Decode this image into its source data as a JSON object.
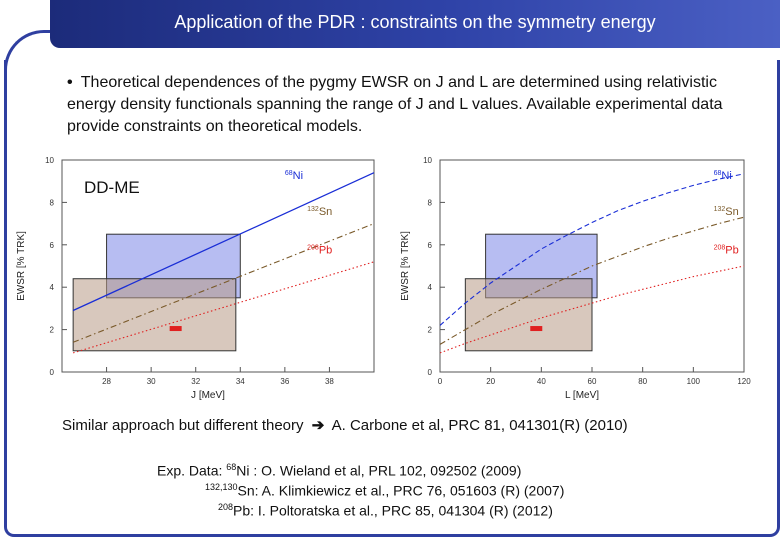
{
  "header": {
    "title": "Application of the PDR : constraints on the symmetry energy"
  },
  "bullet": {
    "marker": "•",
    "text": "Theoretical dependences of the pygmy EWSR on J and L are determined using relativistic energy density functionals spanning the range of J and L values. Available experimental data provide constraints on theoretical models."
  },
  "colors": {
    "header": "#2f43a8",
    "ni": "#1a2ed6",
    "sn": "#7a5a2a",
    "pb": "#e02020",
    "box_blue": "#7c86e8",
    "box_brown": "#b89a86"
  },
  "chart_data": [
    {
      "type": "line",
      "model_label": "DD-ME",
      "xlabel": "J [MeV]",
      "ylabel": "EWSR [% TRK]",
      "xlim": [
        26,
        40
      ],
      "ylim": [
        0,
        10
      ],
      "xticks": [
        28,
        30,
        32,
        34,
        36,
        38
      ],
      "yticks": [
        0,
        2,
        4,
        6,
        8,
        10
      ],
      "series": [
        {
          "name": "68Ni",
          "style": "solid",
          "color": "#1a2ed6",
          "x": [
            26.5,
            40
          ],
          "y": [
            2.9,
            9.4
          ]
        },
        {
          "name": "132Sn",
          "style": "dashdot",
          "color": "#7a5a2a",
          "x": [
            26.5,
            40
          ],
          "y": [
            1.4,
            7.0
          ]
        },
        {
          "name": "208Pb",
          "style": "dotted",
          "color": "#e02020",
          "x": [
            26.5,
            40
          ],
          "y": [
            0.9,
            5.2
          ]
        }
      ],
      "labels": [
        {
          "mass": "68",
          "element": "Ni",
          "x": 36.0,
          "y": 9.1
        },
        {
          "mass": "132",
          "element": "Sn",
          "x": 37.0,
          "y": 7.4
        },
        {
          "mass": "208",
          "element": "Pb",
          "x": 37.0,
          "y": 5.6
        }
      ],
      "boxes": [
        {
          "name": "Ni constraint",
          "x0": 28,
          "x1": 34,
          "y0": 3.5,
          "y1": 6.5,
          "fill": "#7c86e8"
        },
        {
          "name": "Sn constraint",
          "x0": 26.5,
          "x1": 33.8,
          "y0": 1.0,
          "y1": 4.4,
          "fill": "#b89a86"
        }
      ],
      "points": [
        {
          "name": "Pb data",
          "x": 31.1,
          "y": 2.05,
          "color": "#e02020"
        }
      ]
    },
    {
      "type": "line",
      "xlabel": "L [MeV]",
      "ylabel": "EWSR [% TRK]",
      "xlim": [
        0,
        120
      ],
      "ylim": [
        0,
        10
      ],
      "xticks": [
        0,
        20,
        40,
        60,
        80,
        100,
        120
      ],
      "yticks": [
        0,
        2,
        4,
        6,
        8,
        10
      ],
      "series": [
        {
          "name": "68Ni",
          "style": "dashed",
          "color": "#1a2ed6",
          "x": [
            0,
            10,
            20,
            30,
            40,
            50,
            60,
            70,
            80,
            90,
            100,
            110,
            120
          ],
          "y": [
            2.2,
            3.25,
            4.2,
            5.0,
            5.8,
            6.45,
            7.05,
            7.6,
            8.05,
            8.45,
            8.8,
            9.1,
            9.35
          ]
        },
        {
          "name": "132Sn",
          "style": "dashdot",
          "color": "#7a5a2a",
          "x": [
            0,
            10,
            20,
            30,
            40,
            50,
            60,
            70,
            80,
            90,
            100,
            110,
            120
          ],
          "y": [
            1.3,
            2.0,
            2.7,
            3.3,
            3.9,
            4.45,
            5.0,
            5.45,
            5.9,
            6.3,
            6.65,
            7.0,
            7.3
          ]
        },
        {
          "name": "208Pb",
          "style": "dotted",
          "color": "#e02020",
          "x": [
            0,
            10,
            20,
            30,
            40,
            50,
            60,
            70,
            80,
            90,
            100,
            110,
            120
          ],
          "y": [
            0.9,
            1.35,
            1.75,
            2.15,
            2.55,
            2.9,
            3.25,
            3.6,
            3.9,
            4.2,
            4.5,
            4.75,
            5.0
          ]
        }
      ],
      "labels": [
        {
          "mass": "68",
          "element": "Ni",
          "x": 108,
          "y": 9.1
        },
        {
          "mass": "132",
          "element": "Sn",
          "x": 108,
          "y": 7.4
        },
        {
          "mass": "208",
          "element": "Pb",
          "x": 108,
          "y": 5.6
        }
      ],
      "boxes": [
        {
          "name": "Ni constraint",
          "x0": 18,
          "x1": 62,
          "y0": 3.5,
          "y1": 6.5,
          "fill": "#7c86e8"
        },
        {
          "name": "Sn constraint",
          "x0": 10,
          "x1": 60,
          "y0": 1.0,
          "y1": 4.4,
          "fill": "#b89a86"
        }
      ],
      "points": [
        {
          "name": "Pb data",
          "x": 38,
          "y": 2.05,
          "color": "#e02020"
        }
      ]
    }
  ],
  "reference": {
    "lead": "Similar approach but different theory",
    "arrow": "➔",
    "citation": "A. Carbone et al, PRC 81, 041301(R) (2010)"
  },
  "experiments": [
    {
      "prefix": "Exp. Data: ",
      "mass": "68",
      "element_text": "Ni : O. Wieland et al, PRL 102, 092502 (2009)"
    },
    {
      "prefix": "",
      "mass": "132,130",
      "element_text": "Sn: A. Klimkiewicz et al., PRC 76, 051603 (R) (2007)"
    },
    {
      "prefix": "",
      "mass": "208",
      "element_text": "Pb: I. Poltoratska et al., PRC 85, 041304 (R) (2012)"
    }
  ]
}
